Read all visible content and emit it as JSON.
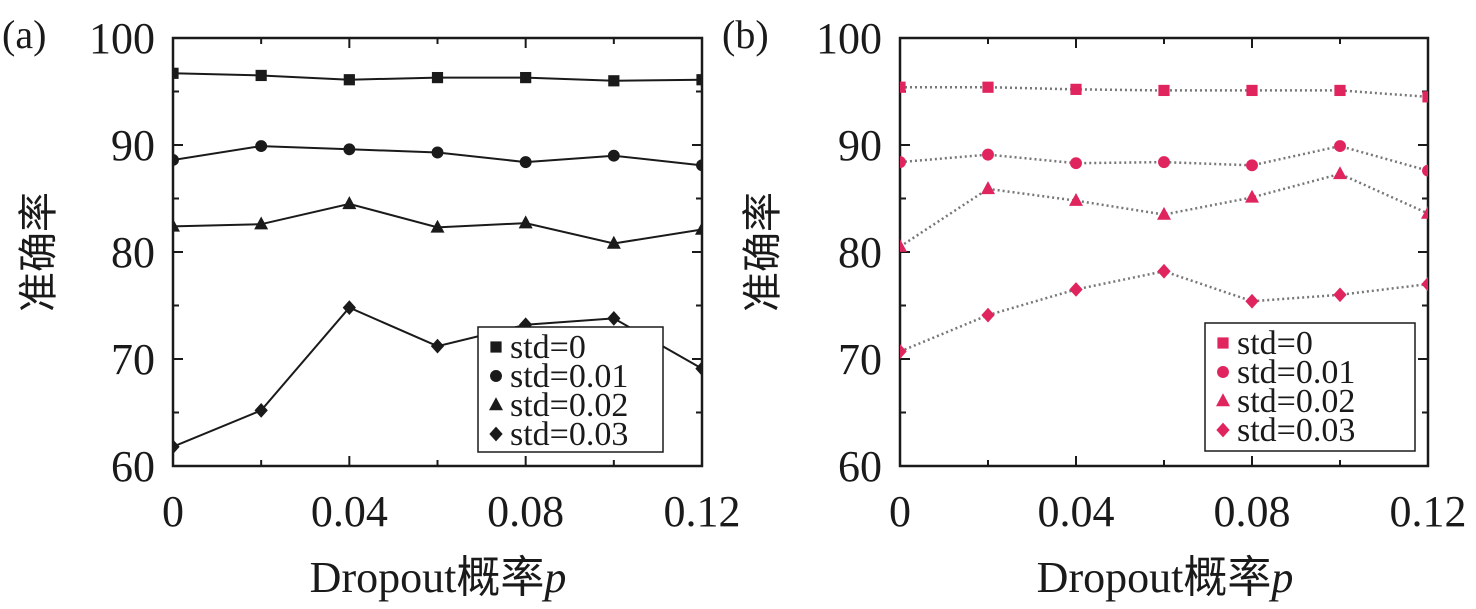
{
  "chart_data": [
    {
      "panel_label": "(a)",
      "type": "line",
      "line_style": "solid",
      "marker_color": "#1a1a1a",
      "xlabel": "Dropout概率",
      "xlabel_var": "p",
      "ylabel": "准确率",
      "xlim": [
        0,
        0.12
      ],
      "ylim": [
        60,
        100
      ],
      "xticks": [
        0,
        0.04,
        0.08,
        0.12
      ],
      "xtick_labels": [
        "0",
        "0.04",
        "0.08",
        "0.12"
      ],
      "yticks": [
        60,
        70,
        80,
        90,
        100
      ],
      "ytick_labels": [
        "60",
        "70",
        "80",
        "90",
        "100"
      ],
      "legend_position": "bottom-right",
      "x": [
        0,
        0.02,
        0.04,
        0.06,
        0.08,
        0.1,
        0.12
      ],
      "series": [
        {
          "name": "std=0",
          "marker": "square",
          "values": [
            96.7,
            96.5,
            96.1,
            96.3,
            96.3,
            96.0,
            96.1
          ]
        },
        {
          "name": "std=0.01",
          "marker": "circle",
          "values": [
            88.6,
            89.9,
            89.6,
            89.3,
            88.4,
            89.0,
            88.1
          ]
        },
        {
          "name": "std=0.02",
          "marker": "triangle",
          "values": [
            82.4,
            82.6,
            84.5,
            82.3,
            82.7,
            80.8,
            82.1
          ]
        },
        {
          "name": "std=0.03",
          "marker": "diamond",
          "values": [
            61.8,
            65.2,
            74.8,
            71.2,
            73.2,
            73.8,
            69.1
          ]
        }
      ]
    },
    {
      "panel_label": "(b)",
      "type": "line",
      "line_style": "dotted",
      "marker_color": "#e0245e",
      "xlabel": "Dropout概率",
      "xlabel_var": "p",
      "ylabel": "准确率",
      "xlim": [
        0,
        0.12
      ],
      "ylim": [
        60,
        100
      ],
      "xticks": [
        0,
        0.04,
        0.08,
        0.12
      ],
      "xtick_labels": [
        "0",
        "0.04",
        "0.08",
        "0.12"
      ],
      "yticks": [
        60,
        70,
        80,
        90,
        100
      ],
      "ytick_labels": [
        "60",
        "70",
        "80",
        "90",
        "100"
      ],
      "legend_position": "bottom-right",
      "x": [
        0,
        0.02,
        0.04,
        0.06,
        0.08,
        0.1,
        0.12
      ],
      "series": [
        {
          "name": "std=0",
          "marker": "square",
          "values": [
            95.4,
            95.4,
            95.2,
            95.1,
            95.1,
            95.1,
            94.5
          ]
        },
        {
          "name": "std=0.01",
          "marker": "circle",
          "values": [
            88.4,
            89.1,
            88.3,
            88.4,
            88.1,
            89.9,
            87.6
          ]
        },
        {
          "name": "std=0.02",
          "marker": "triangle",
          "values": [
            80.5,
            85.9,
            84.8,
            83.5,
            85.1,
            87.3,
            83.6
          ]
        },
        {
          "name": "std=0.03",
          "marker": "diamond",
          "values": [
            70.7,
            74.1,
            76.5,
            78.2,
            75.4,
            76.0,
            77.0
          ]
        }
      ]
    }
  ]
}
